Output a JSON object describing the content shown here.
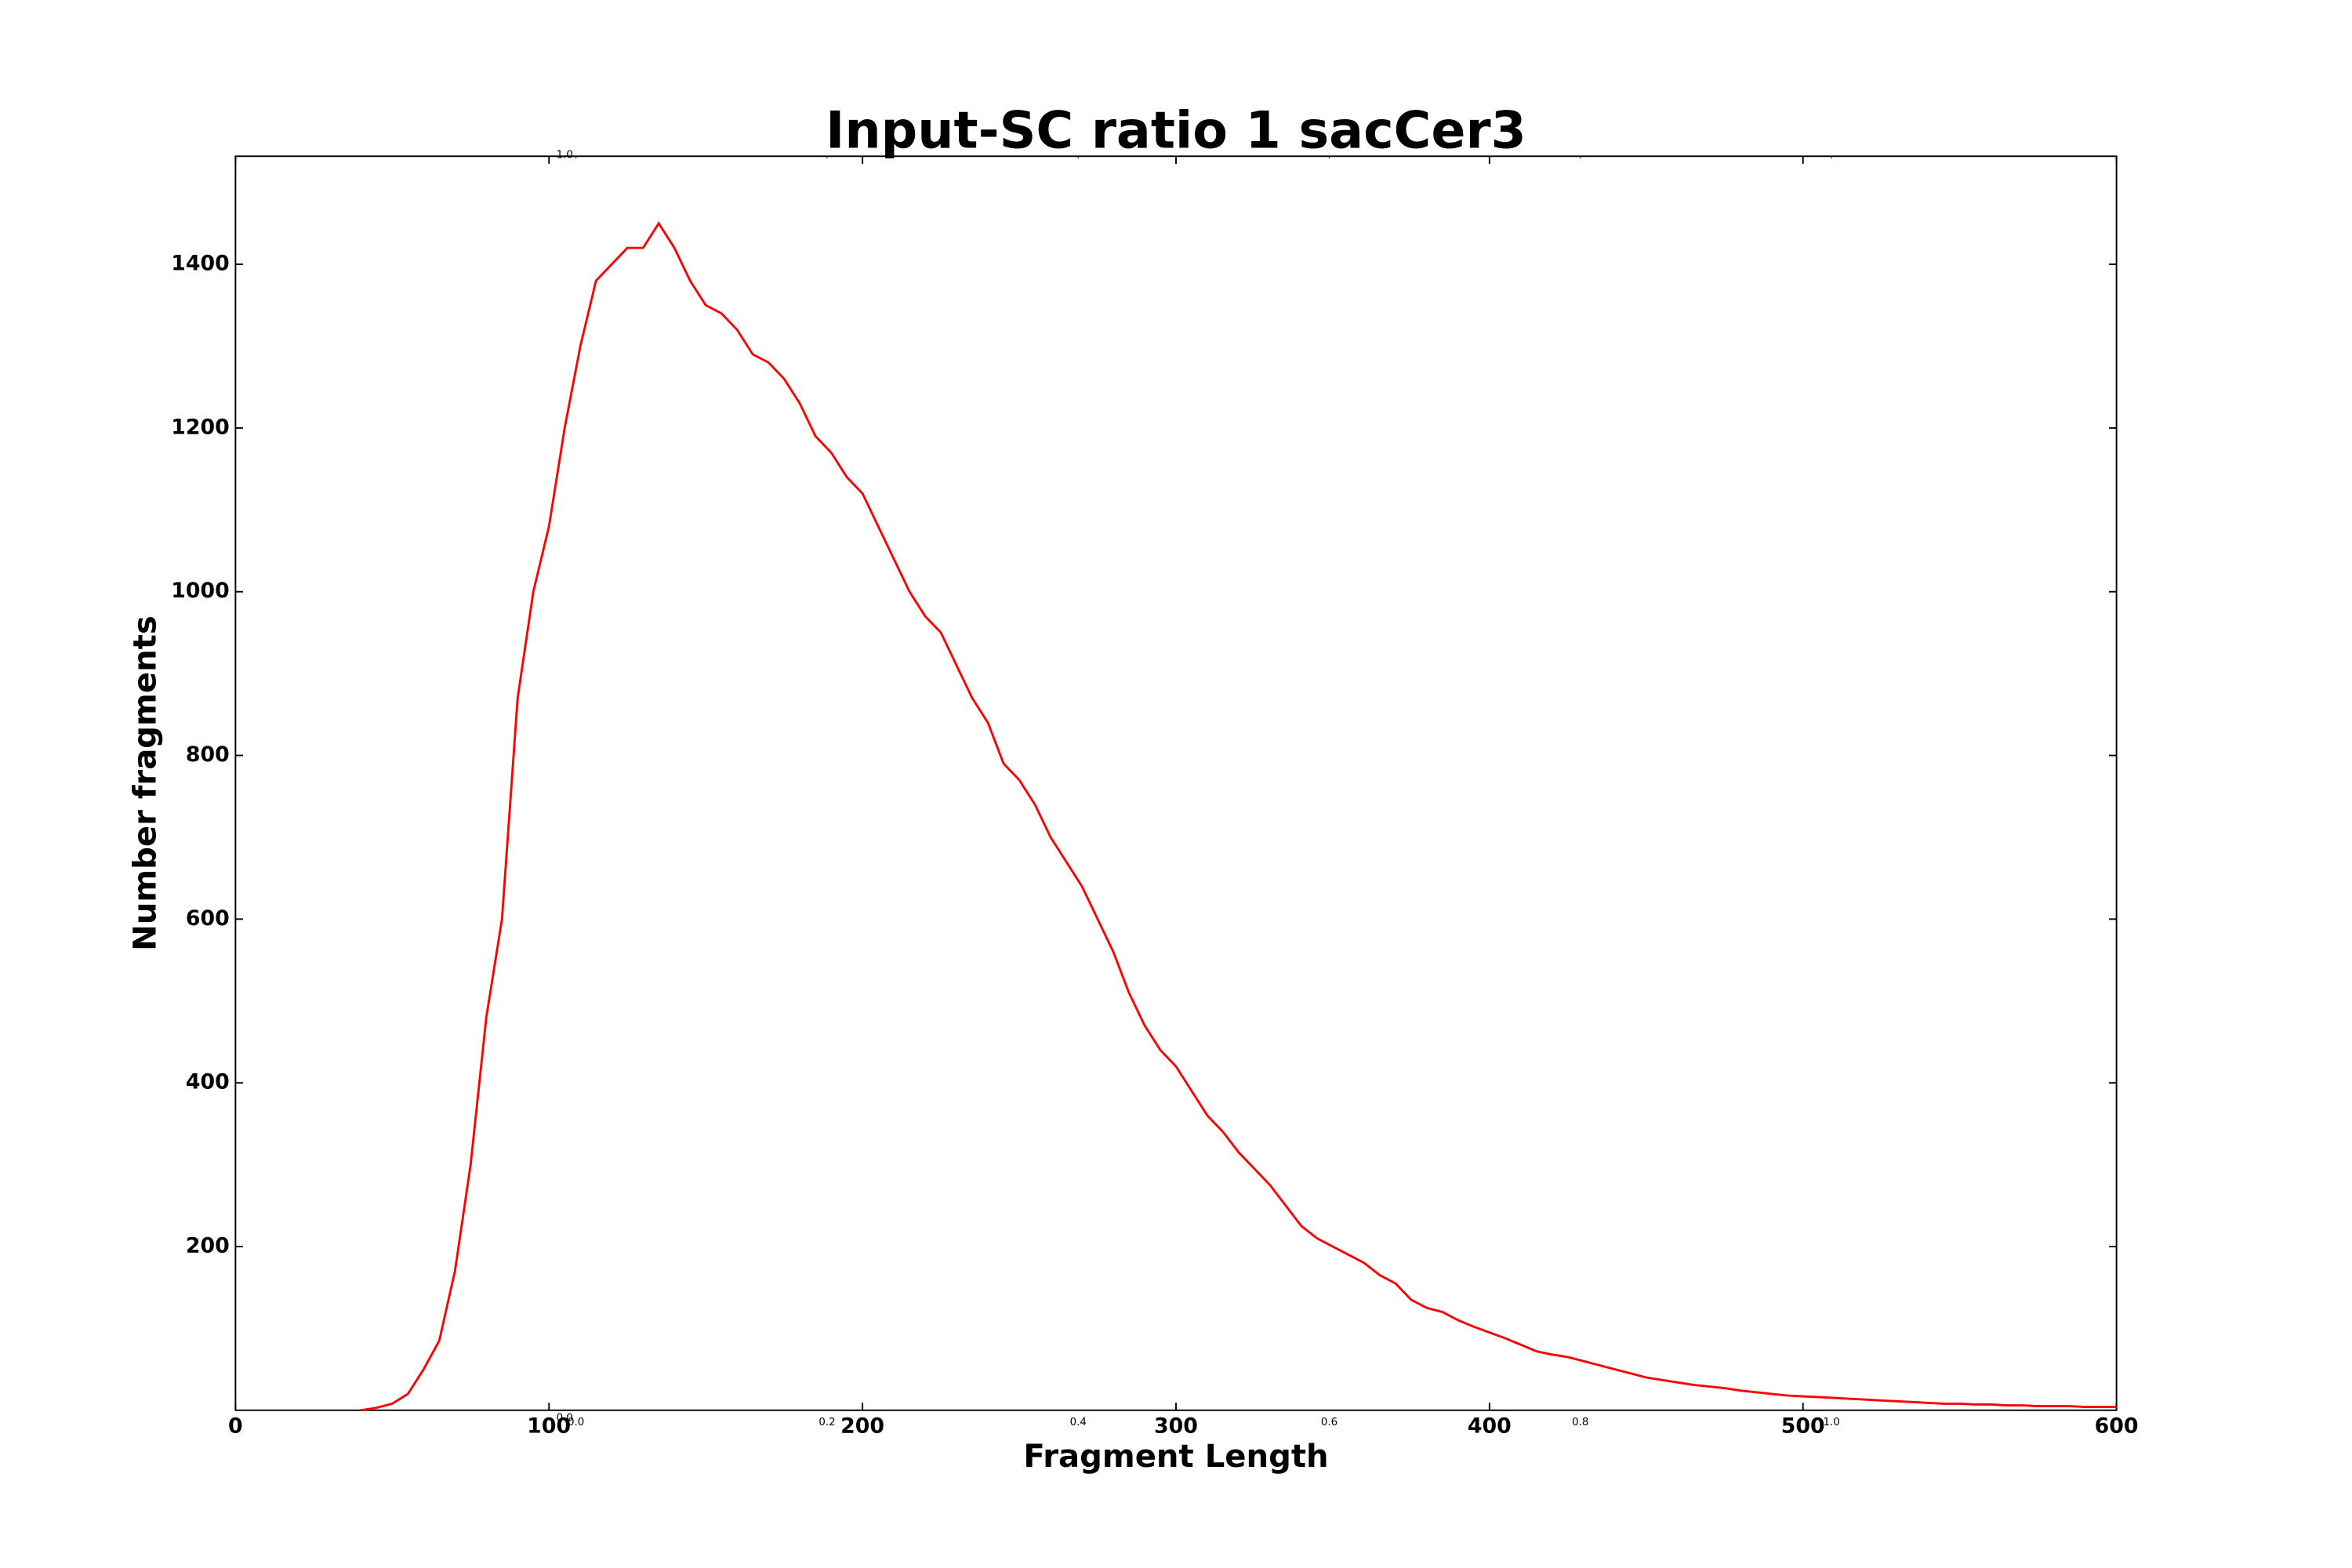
{
  "chart_data": {
    "type": "line",
    "title": "Input-SC ratio 1 sacCer3",
    "x_label": "Fragment Length",
    "y_label": "Number fragments",
    "x": [
      40,
      45,
      50,
      55,
      60,
      65,
      70,
      75,
      80,
      85,
      90,
      95,
      100,
      105,
      110,
      115,
      120,
      125,
      130,
      135,
      140,
      145,
      150,
      155,
      160,
      165,
      170,
      175,
      180,
      185,
      190,
      195,
      200,
      205,
      210,
      215,
      220,
      225,
      230,
      235,
      240,
      245,
      250,
      255,
      260,
      265,
      270,
      275,
      280,
      285,
      290,
      295,
      300,
      305,
      310,
      315,
      320,
      325,
      330,
      335,
      340,
      345,
      350,
      355,
      360,
      365,
      370,
      375,
      380,
      385,
      390,
      395,
      400,
      405,
      410,
      415,
      420,
      425,
      430,
      435,
      440,
      445,
      450,
      455,
      460,
      465,
      470,
      475,
      480,
      485,
      490,
      495,
      500,
      505,
      510,
      515,
      520,
      525,
      530,
      535,
      540,
      545,
      550,
      555,
      560,
      565,
      570,
      575,
      580,
      585,
      590,
      595,
      600
    ],
    "series": [
      {
        "color": "#ff0000",
        "values": [
          0,
          3,
          8,
          20,
          50,
          85,
          170,
          300,
          480,
          600,
          870,
          1000,
          1080,
          1200,
          1300,
          1380,
          1400,
          1420,
          1420,
          1450,
          1420,
          1380,
          1350,
          1340,
          1320,
          1290,
          1280,
          1260,
          1230,
          1190,
          1170,
          1140,
          1120,
          1080,
          1040,
          1000,
          970,
          950,
          910,
          870,
          840,
          790,
          770,
          740,
          700,
          670,
          640,
          600,
          560,
          510,
          470,
          440,
          420,
          390,
          360,
          340,
          315,
          295,
          275,
          250,
          225,
          210,
          200,
          190,
          180,
          165,
          155,
          135,
          125,
          120,
          110,
          102,
          95,
          88,
          80,
          72,
          68,
          65,
          60,
          55,
          50,
          45,
          40,
          37,
          34,
          31,
          29,
          27,
          24,
          22,
          20,
          18,
          17,
          16,
          15,
          14,
          13,
          12,
          11,
          10,
          9,
          8,
          8,
          7,
          7,
          6,
          6,
          5,
          5,
          5,
          4,
          4,
          4
        ]
      }
    ],
    "xlim": [
      0,
      600
    ],
    "xticks": [
      0,
      100,
      200,
      300,
      400,
      500,
      600
    ],
    "ylim": [
      0,
      1532
    ],
    "yticks": [
      200,
      400,
      600,
      800,
      1000,
      1200,
      1400
    ],
    "overlay_axis": {
      "xlim": [
        0,
        1
      ],
      "xticks": [
        {
          "value": 0,
          "label": "0.0"
        },
        {
          "value": 0.2,
          "label": "0.2"
        },
        {
          "value": 0.4,
          "label": "0.4"
        },
        {
          "value": 0.6,
          "label": "0.6"
        },
        {
          "value": 0.8,
          "label": "0.8"
        },
        {
          "value": 1,
          "label": "1.0"
        }
      ],
      "ylim": [
        0,
        1
      ],
      "yticks": [
        {
          "value": 0,
          "label": "0.0"
        },
        {
          "value": 1,
          "label": "1.0"
        }
      ]
    }
  }
}
